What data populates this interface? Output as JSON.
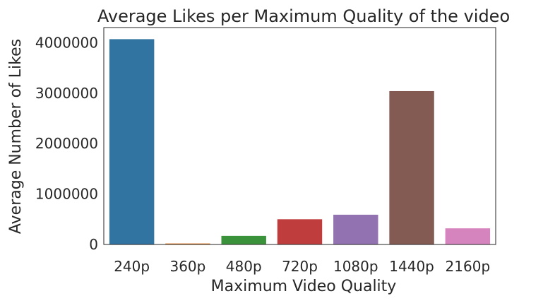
{
  "chart_data": {
    "type": "bar",
    "title": "Average  Likes per Maximum Quality of the video",
    "xlabel": "Maximum Video Quality",
    "ylabel": "Average Number of Likes",
    "categories": [
      "240p",
      "360p",
      "480p",
      "720p",
      "1080p",
      "1440p",
      "2160p"
    ],
    "values": [
      4070000,
      20000,
      170000,
      500000,
      590000,
      3040000,
      320000
    ],
    "colors": [
      "#3274a1",
      "#e1812c",
      "#3a923a",
      "#c03d3e",
      "#9372b2",
      "#845b53",
      "#d684bd"
    ],
    "ylim": [
      0,
      4300000
    ],
    "yticks": [
      0,
      1000000,
      2000000,
      3000000,
      4000000
    ],
    "ytick_labels": [
      "0",
      "1000000",
      "2000000",
      "3000000",
      "4000000"
    ],
    "grid": false,
    "legend": "none"
  }
}
